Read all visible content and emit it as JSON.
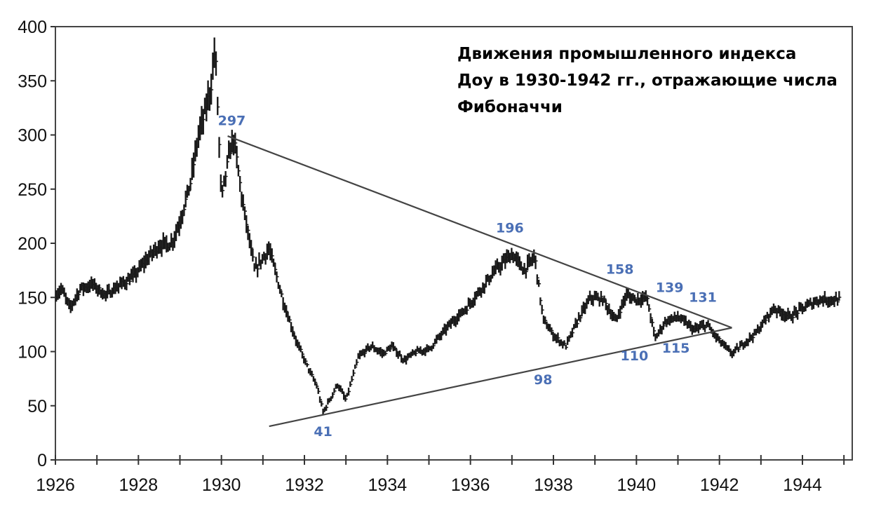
{
  "chart_data": {
    "type": "bar",
    "style": "ohlc",
    "title": "Движения промышленного индекса Доу в 1930-1942 гг., отражающие числа Фибоначчи",
    "title_lines": [
      "Движения промышленного индекса",
      "Доу в 1930-1942 гг., отражающие числа",
      "Фибоначчи"
    ],
    "xlabel": "",
    "ylabel": "",
    "xlim": [
      1926,
      1945.2
    ],
    "ylim": [
      0,
      400
    ],
    "x_ticks": [
      1926,
      1928,
      1930,
      1932,
      1934,
      1936,
      1938,
      1940,
      1942,
      1944
    ],
    "x_tick_labels": [
      "1926",
      "1928",
      "1930",
      "1932",
      "1934",
      "1936",
      "1938",
      "1940",
      "1942",
      "1944"
    ],
    "y_ticks": [
      0,
      50,
      100,
      150,
      200,
      250,
      300,
      350,
      400
    ],
    "y_tick_labels": [
      "0",
      "50",
      "100",
      "150",
      "200",
      "250",
      "300",
      "350",
      "400"
    ],
    "grid": false,
    "series_color": "#1a1a1a",
    "annotation_color": "#4a6fb5",
    "anchors": [
      [
        1926.0,
        152
      ],
      [
        1926.15,
        158
      ],
      [
        1926.35,
        140
      ],
      [
        1926.6,
        158
      ],
      [
        1926.9,
        162
      ],
      [
        1927.2,
        152
      ],
      [
        1927.5,
        160
      ],
      [
        1927.9,
        170
      ],
      [
        1928.2,
        185
      ],
      [
        1928.5,
        198
      ],
      [
        1928.8,
        200
      ],
      [
        1929.0,
        220
      ],
      [
        1929.25,
        255
      ],
      [
        1929.45,
        300
      ],
      [
        1929.6,
        320
      ],
      [
        1929.75,
        345
      ],
      [
        1929.85,
        382
      ],
      [
        1930.0,
        240
      ],
      [
        1930.2,
        285
      ],
      [
        1930.3,
        297
      ],
      [
        1930.5,
        240
      ],
      [
        1930.8,
        175
      ],
      [
        1931.15,
        195
      ],
      [
        1931.5,
        145
      ],
      [
        1931.8,
        110
      ],
      [
        1932.05,
        88
      ],
      [
        1932.3,
        68
      ],
      [
        1932.45,
        44
      ],
      [
        1932.6,
        55
      ],
      [
        1932.8,
        70
      ],
      [
        1933.0,
        55
      ],
      [
        1933.3,
        95
      ],
      [
        1933.6,
        105
      ],
      [
        1933.9,
        98
      ],
      [
        1934.1,
        105
      ],
      [
        1934.4,
        92
      ],
      [
        1934.7,
        100
      ],
      [
        1935.0,
        102
      ],
      [
        1935.5,
        125
      ],
      [
        1935.9,
        140
      ],
      [
        1936.2,
        155
      ],
      [
        1936.6,
        175
      ],
      [
        1937.0,
        190
      ],
      [
        1937.3,
        175
      ],
      [
        1937.55,
        188
      ],
      [
        1937.75,
        130
      ],
      [
        1938.0,
        115
      ],
      [
        1938.3,
        105
      ],
      [
        1938.6,
        130
      ],
      [
        1938.9,
        150
      ],
      [
        1939.2,
        148
      ],
      [
        1939.5,
        128
      ],
      [
        1939.75,
        152
      ],
      [
        1940.0,
        148
      ],
      [
        1940.25,
        150
      ],
      [
        1940.45,
        112
      ],
      [
        1940.7,
        128
      ],
      [
        1941.0,
        132
      ],
      [
        1941.4,
        120
      ],
      [
        1941.7,
        125
      ],
      [
        1941.95,
        112
      ],
      [
        1942.3,
        98
      ],
      [
        1942.6,
        108
      ],
      [
        1942.9,
        118
      ],
      [
        1943.3,
        140
      ],
      [
        1943.7,
        132
      ],
      [
        1944.0,
        140
      ],
      [
        1944.4,
        148
      ],
      [
        1944.9,
        148
      ]
    ],
    "trendlines": [
      {
        "from": [
          1930.15,
          299
        ],
        "to": [
          1942.3,
          122
        ]
      },
      {
        "from": [
          1931.15,
          31
        ],
        "to": [
          1942.3,
          122
        ]
      }
    ],
    "annotations": [
      {
        "text": "297",
        "x": 1930.25,
        "y": 309
      },
      {
        "text": "196",
        "x": 1936.95,
        "y": 210
      },
      {
        "text": "158",
        "x": 1939.6,
        "y": 172
      },
      {
        "text": "139",
        "x": 1940.8,
        "y": 155
      },
      {
        "text": "131",
        "x": 1941.6,
        "y": 146
      },
      {
        "text": "110",
        "x": 1939.95,
        "y": 92
      },
      {
        "text": "115",
        "x": 1940.95,
        "y": 99
      },
      {
        "text": "98",
        "x": 1937.75,
        "y": 70
      },
      {
        "text": "41",
        "x": 1932.45,
        "y": 22
      }
    ]
  }
}
